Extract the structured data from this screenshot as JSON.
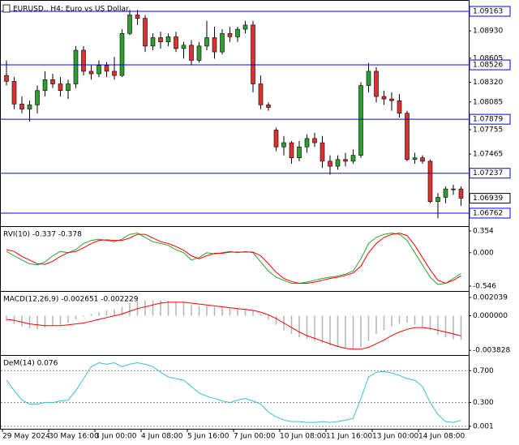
{
  "chart_data": [
    {
      "type": "candlestick",
      "title": "EURUSD., H4:  Euro vs US Dollar",
      "categories": [
        "29 May 2024",
        null,
        null,
        null,
        null,
        null,
        "30 May 16:00",
        null,
        null,
        null,
        null,
        null,
        "3 Jun 00:00",
        null,
        null,
        null,
        null,
        null,
        "4 Jun 08:00",
        null,
        null,
        null,
        null,
        null,
        "5 Jun 16:00",
        null,
        null,
        null,
        null,
        null,
        "7 Jun 00:00",
        null,
        null,
        null,
        null,
        null,
        "10 Jun 08:00",
        null,
        null,
        null,
        null,
        null,
        "11 Jun 16:00",
        null,
        null,
        null,
        null,
        null,
        "13 Jun 00:00",
        null,
        null,
        null,
        null,
        null,
        "14 Jun 08:00",
        null,
        null,
        null,
        null,
        null
      ],
      "open": [
        1.084,
        1.0833,
        1.0806,
        1.08,
        1.0805,
        1.0822,
        1.0835,
        1.083,
        1.0822,
        1.083,
        1.087,
        1.0845,
        1.0842,
        1.0852,
        1.0845,
        1.084,
        1.089,
        1.0912,
        1.0908,
        1.0875,
        1.0885,
        1.088,
        1.0886,
        1.0872,
        1.0876,
        1.0858,
        1.0875,
        1.0885,
        1.0868,
        1.089,
        1.0886,
        1.0895,
        1.09,
        1.083,
        1.0805,
        1.0775,
        1.0755,
        1.076,
        1.0742,
        1.0755,
        1.0765,
        1.076,
        1.0738,
        1.0732,
        1.074,
        1.0738,
        1.0745,
        1.0828,
        1.0845,
        1.0815,
        1.0812,
        1.081,
        1.0795,
        1.074,
        1.0742,
        1.0738,
        1.069,
        1.0695,
        1.0705,
        1.0705
      ],
      "high": [
        1.0858,
        1.0838,
        1.0815,
        1.081,
        1.0828,
        1.0845,
        1.0842,
        1.0838,
        1.0835,
        1.0875,
        1.0875,
        1.0852,
        1.0858,
        1.0856,
        1.0862,
        1.0895,
        1.0918,
        1.0918,
        1.0912,
        1.089,
        1.0892,
        1.089,
        1.0892,
        1.088,
        1.0882,
        1.088,
        1.0905,
        1.0898,
        1.0895,
        1.0898,
        1.0898,
        1.0905,
        1.0905,
        1.084,
        1.0808,
        1.0778,
        1.0768,
        1.0762,
        1.0762,
        1.077,
        1.0772,
        1.0768,
        1.0745,
        1.0745,
        1.0748,
        1.0752,
        1.0832,
        1.0855,
        1.085,
        1.0822,
        1.082,
        1.0818,
        1.0798,
        1.0748,
        1.0745,
        1.074,
        1.07,
        1.0708,
        1.071,
        1.0708
      ],
      "low": [
        1.0828,
        1.08,
        1.0795,
        1.0785,
        1.0795,
        1.0815,
        1.0825,
        1.0815,
        1.0812,
        1.0825,
        1.084,
        1.0835,
        1.0838,
        1.0838,
        1.0835,
        1.0838,
        1.0888,
        1.09,
        1.0868,
        1.087,
        1.0872,
        1.0875,
        1.0868,
        1.086,
        1.0852,
        1.0855,
        1.087,
        1.086,
        1.0865,
        1.088,
        1.088,
        1.089,
        1.082,
        1.08,
        1.0798,
        1.075,
        1.0745,
        1.0735,
        1.0738,
        1.0748,
        1.0755,
        1.073,
        1.0722,
        1.0728,
        1.0732,
        1.0735,
        1.0742,
        1.082,
        1.0808,
        1.0805,
        1.0798,
        1.079,
        1.0738,
        1.0735,
        1.0735,
        1.0688,
        1.067,
        1.0688,
        1.0698,
        1.0685
      ],
      "close": [
        1.0833,
        1.0806,
        1.08,
        1.0805,
        1.0822,
        1.0835,
        1.083,
        1.0822,
        1.083,
        1.087,
        1.0845,
        1.0842,
        1.0852,
        1.0845,
        1.084,
        1.089,
        1.0912,
        1.0908,
        1.0875,
        1.0885,
        1.088,
        1.0886,
        1.0872,
        1.0876,
        1.0858,
        1.0875,
        1.0885,
        1.0868,
        1.089,
        1.0886,
        1.0895,
        1.09,
        1.083,
        1.0805,
        1.0802,
        1.0755,
        1.076,
        1.0742,
        1.0755,
        1.0765,
        1.076,
        1.0738,
        1.0732,
        1.074,
        1.0738,
        1.0745,
        1.0828,
        1.0845,
        1.0815,
        1.0812,
        1.081,
        1.0795,
        1.074,
        1.0742,
        1.0738,
        1.069,
        1.0695,
        1.0705,
        1.0705,
        1.0694
      ],
      "up_color": "#2ca02c",
      "down_color": "#e03030",
      "ylim": [
        1.06617,
        1.09269
      ],
      "yticks": [
        {
          "value": 1.0893,
          "label": "1.08930"
        },
        1.08605,
        {
          "value": 1.0832,
          "label": "1.08320"
        },
        1.08085,
        1.07755,
        1.07465
      ],
      "lines": [
        1.09163,
        1.08526,
        1.07879,
        1.07237,
        1.06762
      ],
      "line_color": "#0000ff",
      "current_price": 1.06939
    },
    {
      "type": "line",
      "title": "RVI(10) -0.337 -0.378",
      "series": [
        {
          "name": "RVI",
          "color": "#2e9e2e",
          "values": [
            0.02,
            -0.05,
            -0.12,
            -0.18,
            -0.2,
            -0.15,
            -0.05,
            0.02,
            0.0,
            0.05,
            0.15,
            0.2,
            0.22,
            0.2,
            0.18,
            0.22,
            0.3,
            0.32,
            0.25,
            0.18,
            0.15,
            0.12,
            0.05,
            0.0,
            -0.12,
            -0.08,
            0.0,
            -0.02,
            0.0,
            0.02,
            0.0,
            0.02,
            0.0,
            -0.15,
            -0.3,
            -0.4,
            -0.45,
            -0.5,
            -0.5,
            -0.48,
            -0.45,
            -0.42,
            -0.4,
            -0.38,
            -0.35,
            -0.3,
            -0.1,
            0.15,
            0.25,
            0.3,
            0.32,
            0.3,
            0.2,
            0.0,
            -0.2,
            -0.4,
            -0.52,
            -0.5,
            -0.42,
            -0.337
          ]
        },
        {
          "name": "Signal",
          "color": "#ff0000",
          "values": [
            0.05,
            0.02,
            -0.06,
            -0.12,
            -0.18,
            -0.19,
            -0.14,
            -0.06,
            0.0,
            0.02,
            0.08,
            0.15,
            0.2,
            0.21,
            0.2,
            0.2,
            0.24,
            0.3,
            0.3,
            0.24,
            0.18,
            0.15,
            0.1,
            0.04,
            -0.05,
            -0.1,
            -0.05,
            -0.01,
            -0.01,
            0.01,
            0.01,
            0.01,
            0.01,
            -0.05,
            -0.18,
            -0.32,
            -0.42,
            -0.47,
            -0.5,
            -0.5,
            -0.48,
            -0.45,
            -0.42,
            -0.4,
            -0.37,
            -0.33,
            -0.22,
            0.0,
            0.15,
            0.25,
            0.3,
            0.32,
            0.28,
            0.12,
            -0.08,
            -0.28,
            -0.45,
            -0.5,
            -0.45,
            -0.378
          ]
        }
      ],
      "ylim": [
        -0.612,
        0.407
      ],
      "yticks": [
        0.354,
        {
          "value": 0,
          "label": "0.000"
        },
        -0.546
      ]
    },
    {
      "type": "macd",
      "title": "MACD(12,26,9) -0.002651 -0.002229",
      "histogram": {
        "color": "#b4b4b4",
        "values": [
          -0.0006,
          -0.0009,
          -0.0012,
          -0.0014,
          -0.0015,
          -0.0013,
          -0.0011,
          -0.001,
          -0.0008,
          -0.0004,
          -0.0001,
          0.0002,
          0.0004,
          0.0006,
          0.0007,
          0.001,
          0.0014,
          0.0017,
          0.0017,
          0.0017,
          0.0017,
          0.0017,
          0.0016,
          0.0015,
          0.0012,
          0.0011,
          0.0011,
          0.001,
          0.0009,
          0.0009,
          0.0008,
          0.0008,
          0.0006,
          0.0002,
          -0.0004,
          -0.001,
          -0.0016,
          -0.002,
          -0.0024,
          -0.0026,
          -0.0028,
          -0.003,
          -0.0033,
          -0.0035,
          -0.0036,
          -0.0037,
          -0.0035,
          -0.0028,
          -0.002,
          -0.0016,
          -0.0012,
          -0.0009,
          -0.0008,
          -0.001,
          -0.0013,
          -0.0016,
          -0.0021,
          -0.0024,
          -0.0026,
          -0.002651
        ]
      },
      "signal": {
        "color": "#ff0000",
        "values": [
          -0.0004,
          -0.0005,
          -0.0007,
          -0.0009,
          -0.001,
          -0.0011,
          -0.0011,
          -0.0011,
          -0.001,
          -0.0009,
          -0.0008,
          -0.0006,
          -0.0004,
          -0.0002,
          0.0,
          0.0002,
          0.0005,
          0.0008,
          0.001,
          0.0012,
          0.0014,
          0.0015,
          0.0015,
          0.0015,
          0.0014,
          0.0013,
          0.0012,
          0.0011,
          0.001,
          0.0009,
          0.0008,
          0.0007,
          0.0006,
          0.0004,
          0.0001,
          -0.0003,
          -0.0008,
          -0.0013,
          -0.0018,
          -0.0022,
          -0.0025,
          -0.0028,
          -0.0031,
          -0.0034,
          -0.0036,
          -0.0037,
          -0.0037,
          -0.0035,
          -0.0031,
          -0.0027,
          -0.0022,
          -0.0018,
          -0.0015,
          -0.0013,
          -0.0013,
          -0.0014,
          -0.0016,
          -0.0018,
          -0.002,
          -0.002229
        ]
      },
      "ylim": [
        -0.00426,
        0.00257
      ],
      "yticks": [
        0.002039,
        {
          "value": 0,
          "label": "0.000000"
        },
        -0.003828
      ]
    },
    {
      "type": "line",
      "title": "DeM(14) 0.076",
      "series": [
        {
          "name": "DeM",
          "color": "#3fbfcf",
          "values": [
            0.58,
            0.45,
            0.33,
            0.28,
            0.28,
            0.3,
            0.3,
            0.32,
            0.33,
            0.45,
            0.6,
            0.75,
            0.8,
            0.78,
            0.8,
            0.75,
            0.78,
            0.8,
            0.78,
            0.75,
            0.68,
            0.62,
            0.6,
            0.58,
            0.5,
            0.42,
            0.38,
            0.35,
            0.32,
            0.3,
            0.33,
            0.35,
            0.32,
            0.28,
            0.18,
            0.12,
            0.08,
            0.06,
            0.06,
            0.05,
            0.05,
            0.06,
            0.05,
            0.06,
            0.08,
            0.1,
            0.35,
            0.62,
            0.68,
            0.69,
            0.67,
            0.64,
            0.6,
            0.58,
            0.5,
            0.3,
            0.15,
            0.06,
            0.05,
            0.076
          ]
        }
      ],
      "ylim": [
        -0.02,
        0.876
      ],
      "yticks": [
        {
          "value": 0.7,
          "label": "0.700"
        },
        {
          "value": 0.3,
          "label": "0.300"
        },
        0.001
      ],
      "grid": true
    }
  ]
}
